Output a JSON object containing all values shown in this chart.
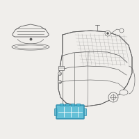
{
  "bg_color": "#f0eeeb",
  "line_color": "#5a5a5a",
  "highlight_color": "#4db8d4",
  "highlight_edge": "#2a8aaa",
  "fig_size": [
    2.0,
    2.0
  ],
  "dpi": 100,
  "white": "#ffffff"
}
